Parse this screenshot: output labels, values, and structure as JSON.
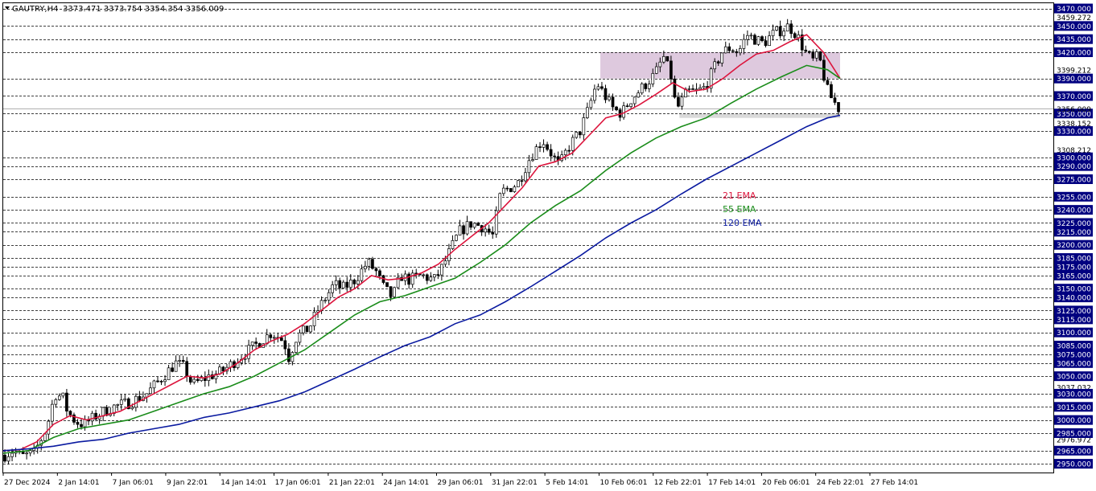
{
  "header": {
    "symbol": "GAUTRY,H4",
    "ohlc": "3373.471 3373.754 3354.354 3356.009"
  },
  "colors": {
    "ema21": "#dc143c",
    "ema55": "#1a8c1a",
    "ema120": "#0a1aa0",
    "zone_upper": "#d8bfd8",
    "zone_lower": "#d3d3d3",
    "level_line": "#000000",
    "price_tag": "#000080"
  },
  "chart_data": {
    "type": "candlestick",
    "ylim": [
      2940,
      3476
    ],
    "x_labels": [
      "27 Dec 2024",
      "2 Jan 14:01",
      "7 Jan 06:01",
      "9 Jan 22:01",
      "14 Jan 14:01",
      "17 Jan 06:01",
      "21 Jan 22:01",
      "24 Jan 14:01",
      "29 Jan 06:01",
      "31 Jan 22:01",
      "5 Feb 14:01",
      "10 Feb 06:01",
      "12 Feb 22:01",
      "17 Feb 14:01",
      "20 Feb 06:01",
      "24 Feb 22:01",
      "27 Feb 14:01"
    ],
    "levels": [
      3470,
      3450,
      3435,
      3420,
      3390,
      3370,
      3350,
      3330,
      3300,
      3290,
      3275,
      3255,
      3240,
      3225,
      3215,
      3200,
      3185,
      3175,
      3165,
      3150,
      3140,
      3125,
      3115,
      3100,
      3085,
      3075,
      3065,
      3050,
      3030,
      3015,
      3000,
      2985,
      2965,
      2950
    ],
    "level_labels": [
      "3470.000",
      "3450.000",
      "3435.000",
      "3420.000",
      "3390.000",
      "3370.000",
      "3350.000",
      "3330.000",
      "3300.000",
      "3290.000",
      "3275.000",
      "3255.000",
      "3240.000",
      "3225.000",
      "3215.000",
      "3200.000",
      "3185.000",
      "3175.000",
      "3165.000",
      "3150.000",
      "3140.000",
      "3125.000",
      "3115.000",
      "3100.000",
      "3085.000",
      "3075.000",
      "3065.000",
      "3050.000",
      "3030.000",
      "3015.000",
      "3000.000",
      "2985.000",
      "2965.000",
      "2950.000"
    ],
    "extra_labels": [
      "3459.272",
      "3399.212",
      "3338.152",
      "3308.212",
      "3037.032",
      "2976.972"
    ],
    "extra_values": [
      3459.272,
      3399.212,
      3338.152,
      3308.212,
      3037.032,
      2976.972
    ],
    "current_price": 3356.009,
    "current_price_label": "3356.009",
    "zones": [
      {
        "from": 3390,
        "to": 3420,
        "start_x": 0.7135,
        "end_x": 1.0,
        "color": "#d8bfd8"
      },
      {
        "from": 3345,
        "to": 3350,
        "start_x": 0.808,
        "end_x": 1.0,
        "color": "#d3d3d3"
      }
    ],
    "close_path": {
      "x": [
        0,
        0.01,
        0.02,
        0.035,
        0.05,
        0.06,
        0.07,
        0.075,
        0.085,
        0.095,
        0.11,
        0.13,
        0.15,
        0.17,
        0.19,
        0.205,
        0.215,
        0.225,
        0.235,
        0.245,
        0.26,
        0.28,
        0.3,
        0.32,
        0.335,
        0.34,
        0.35,
        0.365,
        0.375,
        0.385,
        0.395,
        0.405,
        0.42,
        0.435,
        0.445,
        0.455,
        0.465,
        0.475,
        0.485,
        0.5,
        0.515,
        0.525,
        0.535,
        0.545,
        0.56,
        0.575,
        0.585,
        0.595,
        0.605,
        0.615,
        0.63,
        0.645,
        0.655,
        0.665,
        0.675,
        0.69,
        0.7,
        0.71,
        0.72,
        0.73,
        0.74,
        0.75,
        0.76,
        0.77,
        0.78,
        0.79,
        0.8,
        0.805,
        0.81,
        0.815,
        0.82,
        0.83,
        0.84,
        0.85,
        0.86,
        0.87,
        0.88,
        0.89,
        0.9,
        0.91,
        0.92,
        0.93,
        0.94,
        0.95,
        0.96,
        0.965,
        0.97,
        0.975,
        0.98,
        0.985,
        0.99,
        1.0
      ],
      "y": [
        2960,
        2965,
        2958,
        2962,
        2990,
        3030,
        3025,
        3010,
        2998,
        2995,
        3005,
        3015,
        3020,
        3030,
        3050,
        3065,
        3060,
        3040,
        3045,
        3050,
        3055,
        3070,
        3085,
        3100,
        3090,
        3070,
        3095,
        3105,
        3125,
        3140,
        3155,
        3150,
        3160,
        3180,
        3170,
        3150,
        3140,
        3165,
        3160,
        3165,
        3160,
        3175,
        3195,
        3215,
        3225,
        3220,
        3210,
        3260,
        3265,
        3270,
        3300,
        3320,
        3305,
        3290,
        3310,
        3330,
        3355,
        3385,
        3370,
        3355,
        3350,
        3365,
        3375,
        3385,
        3395,
        3415,
        3390,
        3355,
        3360,
        3370,
        3375,
        3375,
        3380,
        3400,
        3420,
        3425,
        3420,
        3440,
        3435,
        3430,
        3440,
        3445,
        3450,
        3440,
        3420,
        3415,
        3410,
        3415,
        3405,
        3380,
        3370,
        3356
      ]
    },
    "series": [
      {
        "name": "21 EMA",
        "color": "#dc143c",
        "x": [
          0,
          0.02,
          0.04,
          0.06,
          0.08,
          0.1,
          0.12,
          0.14,
          0.16,
          0.18,
          0.2,
          0.22,
          0.24,
          0.26,
          0.28,
          0.3,
          0.32,
          0.34,
          0.36,
          0.38,
          0.4,
          0.42,
          0.44,
          0.46,
          0.48,
          0.5,
          0.52,
          0.54,
          0.56,
          0.58,
          0.6,
          0.62,
          0.64,
          0.66,
          0.68,
          0.7,
          0.72,
          0.74,
          0.76,
          0.78,
          0.8,
          0.82,
          0.84,
          0.86,
          0.88,
          0.9,
          0.92,
          0.94,
          0.96,
          0.98,
          1.0
        ],
        "y": [
          2965,
          2966,
          2975,
          2995,
          3005,
          3000,
          3005,
          3010,
          3020,
          3030,
          3040,
          3050,
          3048,
          3053,
          3065,
          3080,
          3090,
          3098,
          3110,
          3125,
          3140,
          3150,
          3165,
          3160,
          3162,
          3168,
          3178,
          3195,
          3210,
          3225,
          3245,
          3265,
          3290,
          3295,
          3305,
          3325,
          3345,
          3350,
          3360,
          3372,
          3385,
          3375,
          3378,
          3390,
          3405,
          3418,
          3422,
          3432,
          3440,
          3420,
          3390
        ]
      },
      {
        "name": "55 EMA",
        "color": "#1a8c1a",
        "x": [
          0,
          0.03,
          0.06,
          0.09,
          0.12,
          0.15,
          0.18,
          0.21,
          0.24,
          0.27,
          0.3,
          0.33,
          0.36,
          0.39,
          0.42,
          0.45,
          0.48,
          0.51,
          0.54,
          0.57,
          0.6,
          0.63,
          0.66,
          0.69,
          0.72,
          0.75,
          0.78,
          0.81,
          0.84,
          0.87,
          0.9,
          0.93,
          0.96,
          0.985,
          1.0
        ],
        "y": [
          2962,
          2965,
          2980,
          2990,
          2995,
          3000,
          3010,
          3020,
          3030,
          3038,
          3050,
          3065,
          3080,
          3100,
          3120,
          3135,
          3142,
          3152,
          3162,
          3180,
          3200,
          3225,
          3245,
          3262,
          3285,
          3305,
          3322,
          3335,
          3345,
          3362,
          3378,
          3392,
          3405,
          3400,
          3390
        ]
      },
      {
        "name": "120 EMA",
        "color": "#0a1aa0",
        "x": [
          0,
          0.03,
          0.06,
          0.09,
          0.12,
          0.15,
          0.18,
          0.21,
          0.24,
          0.27,
          0.3,
          0.33,
          0.36,
          0.39,
          0.42,
          0.45,
          0.48,
          0.51,
          0.54,
          0.57,
          0.6,
          0.63,
          0.66,
          0.69,
          0.72,
          0.75,
          0.78,
          0.81,
          0.84,
          0.87,
          0.9,
          0.93,
          0.96,
          0.985,
          1.0
        ],
        "y": [
          2965,
          2967,
          2970,
          2975,
          2978,
          2985,
          2990,
          2995,
          3003,
          3008,
          3015,
          3022,
          3032,
          3045,
          3058,
          3072,
          3085,
          3095,
          3110,
          3120,
          3135,
          3152,
          3170,
          3188,
          3208,
          3225,
          3240,
          3258,
          3275,
          3290,
          3305,
          3320,
          3335,
          3345,
          3348
        ]
      }
    ],
    "legend": [
      {
        "label": "21 EMA",
        "color": "#dc143c"
      },
      {
        "label": "55 EMA",
        "color": "#1a8c1a"
      },
      {
        "label": "120 EMA",
        "color": "#0a1aa0"
      }
    ],
    "legend_placement": "center-right"
  }
}
